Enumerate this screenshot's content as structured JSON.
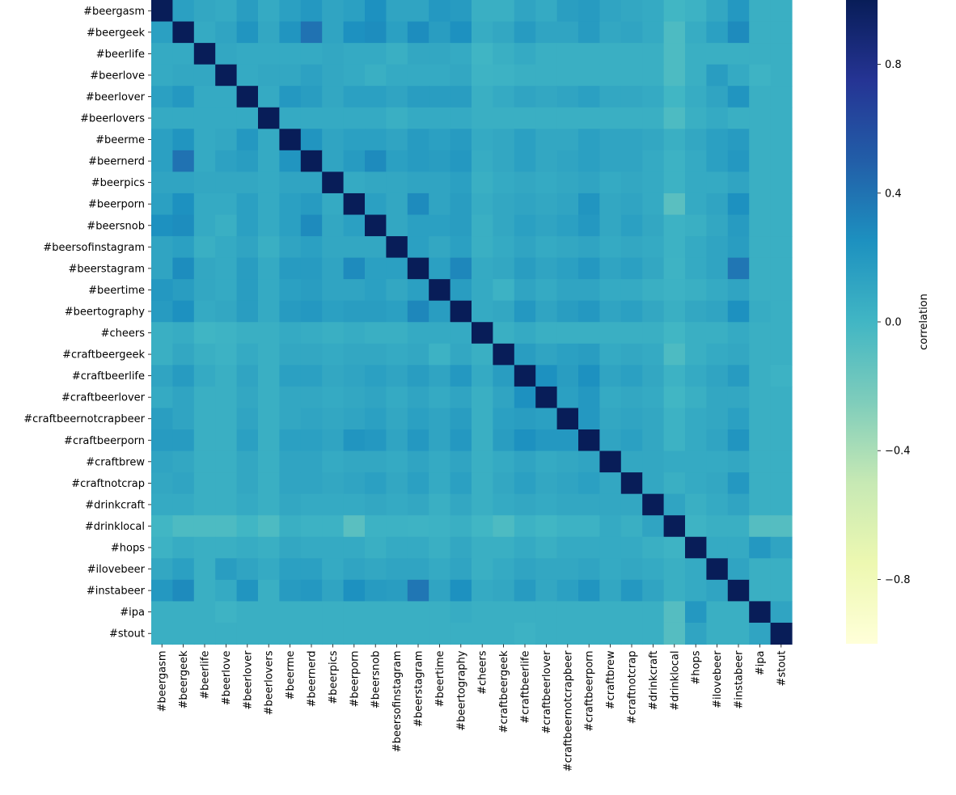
{
  "chart_data": {
    "type": "heatmap",
    "title": "",
    "xlabel": "",
    "ylabel": "",
    "labels": [
      "#beergasm",
      "#beergeek",
      "#beerlife",
      "#beerlove",
      "#beerlover",
      "#beerlovers",
      "#beerme",
      "#beernerd",
      "#beerpics",
      "#beerporn",
      "#beersnob",
      "#beersofinstagram",
      "#beerstagram",
      "#beertime",
      "#beertography",
      "#cheers",
      "#craftbeergeek",
      "#craftbeerlife",
      "#craftbeerlover",
      "#craftbeernotcrapbeer",
      "#craftbeerporn",
      "#craftbrew",
      "#craftnotcrap",
      "#drinkcraft",
      "#drinklocal",
      "#hops",
      "#ilovebeer",
      "#instabeer",
      "#ipa",
      "#stout"
    ],
    "colorscale": "YlGnBu",
    "vmin": -1,
    "vmax": 1,
    "colorbar": {
      "label": "correlation",
      "ticks": [
        0.8,
        0.4,
        0.0,
        -0.4,
        -0.8
      ],
      "tick_labels": [
        "0.8",
        "0.4",
        "0.0",
        "−0.4",
        "−0.8"
      ]
    },
    "matrix": [
      [
        1.0,
        0.15,
        0.1,
        0.08,
        0.17,
        0.08,
        0.15,
        0.2,
        0.12,
        0.15,
        0.25,
        0.12,
        0.12,
        0.2,
        0.18,
        0.05,
        0.05,
        0.12,
        0.08,
        0.16,
        0.18,
        0.12,
        0.1,
        0.08,
        0.0,
        0.03,
        0.1,
        0.2,
        0.05,
        0.05
      ],
      [
        0.15,
        1.0,
        0.08,
        0.12,
        0.22,
        0.1,
        0.22,
        0.4,
        0.12,
        0.25,
        0.27,
        0.15,
        0.27,
        0.17,
        0.25,
        0.07,
        0.1,
        0.18,
        0.12,
        0.12,
        0.18,
        0.1,
        0.12,
        0.08,
        -0.05,
        0.07,
        0.15,
        0.28,
        0.05,
        0.05
      ],
      [
        0.08,
        0.08,
        1.0,
        0.1,
        0.08,
        0.08,
        0.08,
        0.08,
        0.1,
        0.08,
        0.08,
        0.05,
        0.1,
        0.1,
        0.08,
        0.01,
        0.05,
        0.08,
        0.05,
        0.05,
        0.05,
        0.05,
        0.05,
        0.05,
        -0.05,
        0.05,
        0.05,
        0.05,
        0.05,
        0.05
      ],
      [
        0.08,
        0.1,
        0.1,
        1.0,
        0.08,
        0.1,
        0.1,
        0.14,
        0.1,
        0.08,
        0.05,
        0.08,
        0.08,
        0.08,
        0.1,
        0.02,
        0.03,
        0.05,
        0.05,
        0.05,
        0.05,
        0.05,
        0.05,
        0.05,
        -0.05,
        0.05,
        0.17,
        0.08,
        0.02,
        0.05
      ],
      [
        0.15,
        0.2,
        0.08,
        0.08,
        1.0,
        0.08,
        0.2,
        0.17,
        0.1,
        0.15,
        0.15,
        0.12,
        0.17,
        0.17,
        0.17,
        0.05,
        0.08,
        0.12,
        0.1,
        0.12,
        0.15,
        0.1,
        0.1,
        0.08,
        0.0,
        0.07,
        0.12,
        0.22,
        0.05,
        0.05
      ],
      [
        0.08,
        0.08,
        0.08,
        0.08,
        0.08,
        1.0,
        0.08,
        0.08,
        0.08,
        0.08,
        0.08,
        0.05,
        0.08,
        0.08,
        0.08,
        0.05,
        0.05,
        0.05,
        0.05,
        0.05,
        0.05,
        0.05,
        0.05,
        0.05,
        -0.05,
        0.05,
        0.08,
        0.05,
        0.05,
        0.05
      ],
      [
        0.15,
        0.22,
        0.08,
        0.1,
        0.2,
        0.08,
        1.0,
        0.22,
        0.12,
        0.15,
        0.15,
        0.12,
        0.18,
        0.15,
        0.18,
        0.08,
        0.1,
        0.15,
        0.1,
        0.1,
        0.15,
        0.12,
        0.12,
        0.1,
        0.05,
        0.1,
        0.15,
        0.18,
        0.05,
        0.05
      ],
      [
        0.15,
        0.4,
        0.08,
        0.14,
        0.17,
        0.08,
        0.22,
        1.0,
        0.12,
        0.18,
        0.28,
        0.15,
        0.18,
        0.17,
        0.2,
        0.07,
        0.1,
        0.15,
        0.1,
        0.12,
        0.15,
        0.12,
        0.12,
        0.08,
        0.03,
        0.08,
        0.15,
        0.2,
        0.05,
        0.05
      ],
      [
        0.12,
        0.12,
        0.1,
        0.1,
        0.1,
        0.08,
        0.12,
        0.12,
        1.0,
        0.08,
        0.1,
        0.1,
        0.12,
        0.12,
        0.15,
        0.05,
        0.08,
        0.1,
        0.08,
        0.1,
        0.12,
        0.08,
        0.1,
        0.08,
        0.03,
        0.08,
        0.08,
        0.12,
        0.05,
        0.05
      ],
      [
        0.15,
        0.25,
        0.08,
        0.08,
        0.15,
        0.08,
        0.15,
        0.18,
        0.08,
        1.0,
        0.15,
        0.1,
        0.28,
        0.12,
        0.17,
        0.07,
        0.1,
        0.12,
        0.1,
        0.12,
        0.22,
        0.1,
        0.12,
        0.08,
        -0.1,
        0.08,
        0.12,
        0.25,
        0.05,
        0.05
      ],
      [
        0.25,
        0.27,
        0.08,
        0.05,
        0.15,
        0.08,
        0.15,
        0.28,
        0.1,
        0.15,
        1.0,
        0.1,
        0.15,
        0.15,
        0.17,
        0.05,
        0.1,
        0.15,
        0.12,
        0.15,
        0.2,
        0.1,
        0.15,
        0.1,
        0.03,
        0.05,
        0.1,
        0.18,
        0.05,
        0.05
      ],
      [
        0.12,
        0.15,
        0.05,
        0.08,
        0.12,
        0.05,
        0.12,
        0.15,
        0.1,
        0.1,
        0.1,
        1.0,
        0.15,
        0.1,
        0.15,
        0.05,
        0.08,
        0.12,
        0.08,
        0.1,
        0.12,
        0.08,
        0.1,
        0.08,
        0.03,
        0.08,
        0.12,
        0.17,
        0.05,
        0.05
      ],
      [
        0.12,
        0.27,
        0.1,
        0.08,
        0.17,
        0.08,
        0.18,
        0.18,
        0.12,
        0.28,
        0.15,
        0.15,
        1.0,
        0.15,
        0.3,
        0.08,
        0.1,
        0.17,
        0.12,
        0.15,
        0.2,
        0.12,
        0.15,
        0.1,
        0.02,
        0.08,
        0.12,
        0.38,
        0.05,
        0.05
      ],
      [
        0.2,
        0.17,
        0.1,
        0.08,
        0.17,
        0.08,
        0.15,
        0.17,
        0.12,
        0.12,
        0.15,
        0.1,
        0.15,
        1.0,
        0.17,
        0.08,
        0.03,
        0.12,
        0.08,
        0.12,
        0.12,
        0.08,
        0.08,
        0.05,
        0.03,
        0.05,
        0.08,
        0.12,
        0.05,
        0.05
      ],
      [
        0.18,
        0.25,
        0.08,
        0.1,
        0.17,
        0.08,
        0.18,
        0.2,
        0.15,
        0.17,
        0.17,
        0.15,
        0.3,
        0.17,
        1.0,
        0.08,
        0.1,
        0.2,
        0.12,
        0.17,
        0.2,
        0.12,
        0.15,
        0.1,
        0.05,
        0.1,
        0.12,
        0.25,
        0.07,
        0.05
      ],
      [
        0.05,
        0.07,
        0.01,
        0.02,
        0.05,
        0.05,
        0.08,
        0.07,
        0.05,
        0.07,
        0.05,
        0.05,
        0.08,
        0.08,
        0.08,
        1.0,
        0.05,
        0.08,
        0.05,
        0.05,
        0.05,
        0.05,
        0.05,
        0.05,
        0.0,
        0.05,
        0.05,
        0.08,
        0.05,
        0.05
      ],
      [
        0.05,
        0.1,
        0.05,
        0.03,
        0.08,
        0.05,
        0.1,
        0.1,
        0.08,
        0.1,
        0.1,
        0.08,
        0.1,
        0.03,
        0.1,
        0.05,
        1.0,
        0.17,
        0.12,
        0.15,
        0.17,
        0.08,
        0.1,
        0.08,
        -0.05,
        0.05,
        0.08,
        0.1,
        0.05,
        0.05
      ],
      [
        0.12,
        0.18,
        0.08,
        0.05,
        0.12,
        0.05,
        0.15,
        0.15,
        0.1,
        0.12,
        0.15,
        0.12,
        0.17,
        0.12,
        0.2,
        0.08,
        0.17,
        1.0,
        0.25,
        0.17,
        0.25,
        0.12,
        0.15,
        0.1,
        0.03,
        0.08,
        0.12,
        0.18,
        0.05,
        0.03
      ],
      [
        0.08,
        0.12,
        0.05,
        0.05,
        0.1,
        0.05,
        0.1,
        0.1,
        0.08,
        0.1,
        0.12,
        0.08,
        0.12,
        0.08,
        0.12,
        0.05,
        0.12,
        0.25,
        1.0,
        0.15,
        0.2,
        0.08,
        0.1,
        0.08,
        0.0,
        0.05,
        0.1,
        0.1,
        0.05,
        0.05
      ],
      [
        0.16,
        0.12,
        0.05,
        0.05,
        0.12,
        0.05,
        0.1,
        0.12,
        0.1,
        0.12,
        0.15,
        0.1,
        0.15,
        0.12,
        0.17,
        0.05,
        0.15,
        0.17,
        0.15,
        1.0,
        0.2,
        0.1,
        0.12,
        0.1,
        0.03,
        0.08,
        0.1,
        0.15,
        0.05,
        0.05
      ],
      [
        0.18,
        0.18,
        0.05,
        0.05,
        0.15,
        0.05,
        0.15,
        0.15,
        0.12,
        0.22,
        0.2,
        0.12,
        0.2,
        0.12,
        0.2,
        0.05,
        0.17,
        0.25,
        0.2,
        0.2,
        1.0,
        0.12,
        0.15,
        0.1,
        0.03,
        0.08,
        0.12,
        0.22,
        0.05,
        0.05
      ],
      [
        0.12,
        0.1,
        0.05,
        0.05,
        0.1,
        0.05,
        0.12,
        0.12,
        0.08,
        0.1,
        0.1,
        0.08,
        0.12,
        0.08,
        0.12,
        0.05,
        0.08,
        0.12,
        0.08,
        0.1,
        0.12,
        1.0,
        0.1,
        0.1,
        0.08,
        0.08,
        0.08,
        0.1,
        0.05,
        0.05
      ],
      [
        0.1,
        0.12,
        0.05,
        0.05,
        0.1,
        0.05,
        0.12,
        0.12,
        0.1,
        0.12,
        0.15,
        0.1,
        0.15,
        0.08,
        0.15,
        0.05,
        0.1,
        0.15,
        0.1,
        0.12,
        0.15,
        0.1,
        1.0,
        0.1,
        0.05,
        0.08,
        0.1,
        0.2,
        0.05,
        0.05
      ],
      [
        0.08,
        0.08,
        0.05,
        0.05,
        0.08,
        0.05,
        0.1,
        0.08,
        0.08,
        0.08,
        0.1,
        0.08,
        0.1,
        0.05,
        0.1,
        0.05,
        0.08,
        0.1,
        0.08,
        0.1,
        0.1,
        0.1,
        0.1,
        1.0,
        0.12,
        0.05,
        0.08,
        0.12,
        0.05,
        0.05
      ],
      [
        0.0,
        -0.05,
        -0.05,
        -0.05,
        0.0,
        -0.05,
        0.05,
        0.03,
        0.03,
        -0.1,
        0.03,
        0.03,
        0.02,
        0.03,
        0.05,
        0.0,
        -0.05,
        0.03,
        0.0,
        0.03,
        0.03,
        0.08,
        0.05,
        0.12,
        1.0,
        0.02,
        0.05,
        0.05,
        -0.08,
        -0.08
      ],
      [
        0.03,
        0.07,
        0.05,
        0.05,
        0.07,
        0.05,
        0.1,
        0.08,
        0.08,
        0.08,
        0.05,
        0.08,
        0.08,
        0.05,
        0.1,
        0.05,
        0.05,
        0.08,
        0.05,
        0.08,
        0.08,
        0.08,
        0.08,
        0.05,
        0.02,
        1.0,
        0.08,
        0.08,
        0.2,
        0.12
      ],
      [
        0.1,
        0.15,
        0.05,
        0.17,
        0.12,
        0.08,
        0.15,
        0.15,
        0.08,
        0.12,
        0.1,
        0.12,
        0.12,
        0.08,
        0.12,
        0.05,
        0.08,
        0.12,
        0.1,
        0.1,
        0.12,
        0.08,
        0.1,
        0.08,
        0.05,
        0.08,
        1.0,
        0.12,
        0.05,
        0.05
      ],
      [
        0.2,
        0.28,
        0.05,
        0.08,
        0.22,
        0.05,
        0.18,
        0.2,
        0.12,
        0.25,
        0.18,
        0.17,
        0.38,
        0.12,
        0.25,
        0.08,
        0.1,
        0.18,
        0.1,
        0.15,
        0.22,
        0.1,
        0.2,
        0.12,
        0.05,
        0.08,
        0.12,
        1.0,
        0.05,
        0.05
      ],
      [
        0.05,
        0.05,
        0.05,
        0.02,
        0.05,
        0.05,
        0.05,
        0.05,
        0.05,
        0.05,
        0.05,
        0.05,
        0.05,
        0.05,
        0.07,
        0.05,
        0.05,
        0.05,
        0.05,
        0.05,
        0.05,
        0.05,
        0.05,
        0.05,
        -0.08,
        0.2,
        0.05,
        0.05,
        1.0,
        0.12
      ],
      [
        0.05,
        0.05,
        0.05,
        0.05,
        0.05,
        0.05,
        0.05,
        0.05,
        0.05,
        0.05,
        0.05,
        0.05,
        0.05,
        0.05,
        0.05,
        0.05,
        0.05,
        0.03,
        0.05,
        0.05,
        0.05,
        0.05,
        0.05,
        0.05,
        -0.08,
        0.12,
        0.05,
        0.05,
        0.12,
        1.0
      ]
    ]
  }
}
